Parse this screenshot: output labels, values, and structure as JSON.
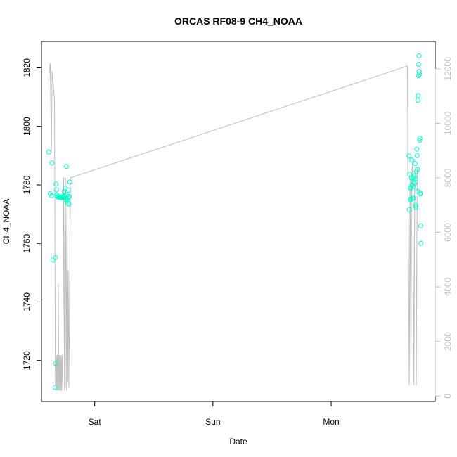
{
  "chart_data": {
    "type": "scatter",
    "title": "ORCAS RF08-9 CH4_NOAA",
    "xlabel": "Date",
    "ylabel": "CH4_NOAA",
    "x_ticks": [
      {
        "label": "Sat",
        "day": 1.0
      },
      {
        "label": "Sun",
        "day": 2.0
      },
      {
        "label": "Mon",
        "day": 3.0
      }
    ],
    "xlim_days": [
      0.55,
      3.88
    ],
    "ylim": [
      1706,
      1829
    ],
    "y_ticks": [
      1720,
      1740,
      1760,
      1780,
      1800,
      1820
    ],
    "y2lim": [
      -200,
      13000
    ],
    "y2_ticks": [
      0,
      2000,
      4000,
      6000,
      8000,
      10000,
      12000
    ],
    "colors": {
      "points": "#00FFCC",
      "line": "#BEBEBE",
      "right_axis": "#BDBDBD"
    },
    "series": [
      {
        "name": "",
        "axis": "left",
        "marker": "circle",
        "points": [
          [
            0.611,
            1791.2
          ],
          [
            0.624,
            1777.0
          ],
          [
            0.637,
            1787.5
          ],
          [
            0.637,
            1776.3
          ],
          [
            0.645,
            1754.3
          ],
          [
            0.669,
            1755.2
          ],
          [
            0.669,
            1719.0
          ],
          [
            0.666,
            1710.8
          ],
          [
            0.673,
            1780.3
          ],
          [
            0.677,
            1778.3
          ],
          [
            0.681,
            1776.5
          ],
          [
            0.686,
            1776.0
          ],
          [
            0.692,
            1776.0
          ],
          [
            0.698,
            1775.8
          ],
          [
            0.704,
            1775.8
          ],
          [
            0.71,
            1775.8
          ],
          [
            0.716,
            1775.8
          ],
          [
            0.722,
            1775.6
          ],
          [
            0.728,
            1775.8
          ],
          [
            0.734,
            1776.1
          ],
          [
            0.74,
            1777.7
          ],
          [
            0.746,
            1775.8
          ],
          [
            0.752,
            1778.9
          ],
          [
            0.758,
            1774.8
          ],
          [
            0.761,
            1786.3
          ],
          [
            0.764,
            1775.4
          ],
          [
            0.767,
            1776.5
          ],
          [
            0.77,
            1774.6
          ],
          [
            0.773,
            1773.8
          ],
          [
            0.776,
            1775.8
          ],
          [
            0.779,
            1778.2
          ],
          [
            0.782,
            1773.4
          ],
          [
            0.786,
            1776.0
          ],
          [
            0.79,
            1781.0
          ],
          [
            3.658,
            1789.9
          ],
          [
            3.661,
            1771.5
          ],
          [
            3.664,
            1783.6
          ],
          [
            3.667,
            1779.0
          ],
          [
            3.67,
            1774.8
          ],
          [
            3.673,
            1775.2
          ],
          [
            3.676,
            1778.9
          ],
          [
            3.679,
            1782.4
          ],
          [
            3.682,
            1788.5
          ],
          [
            3.685,
            1780.0
          ],
          [
            3.688,
            1775.4
          ],
          [
            3.691,
            1782.6
          ],
          [
            3.694,
            1779.4
          ],
          [
            3.697,
            1775.5
          ],
          [
            3.7,
            1781.0
          ],
          [
            3.703,
            1783.0
          ],
          [
            3.706,
            1780.5
          ],
          [
            3.709,
            1782.0
          ],
          [
            3.712,
            1787.3
          ],
          [
            3.715,
            1773.0
          ],
          [
            3.718,
            1772.4
          ],
          [
            3.721,
            1784.6
          ],
          [
            3.724,
            1792.2
          ],
          [
            3.727,
            1790.0
          ],
          [
            3.73,
            1785.3
          ],
          [
            3.733,
            1777.8
          ],
          [
            3.735,
            1808.9
          ],
          [
            3.737,
            1810.5
          ],
          [
            3.739,
            1817.3
          ],
          [
            3.741,
            1821.2
          ],
          [
            3.743,
            1824.1
          ],
          [
            3.745,
            1818.7
          ],
          [
            3.747,
            1817.8
          ],
          [
            3.749,
            1795.2
          ],
          [
            3.751,
            1795.9
          ],
          [
            3.753,
            1777.3
          ],
          [
            3.755,
            1776.9
          ],
          [
            3.757,
            1766.0
          ],
          [
            3.759,
            1760.0
          ]
        ]
      },
      {
        "name": "",
        "axis": "right",
        "marker": "line",
        "points": [
          [
            0.61,
            11600
          ],
          [
            0.624,
            12200
          ],
          [
            0.634,
            9000
          ],
          [
            0.64,
            11900
          ],
          [
            0.66,
            10900
          ],
          [
            0.668,
            500
          ],
          [
            0.672,
            200
          ],
          [
            0.676,
            1500
          ],
          [
            0.68,
            200
          ],
          [
            0.684,
            1500
          ],
          [
            0.688,
            200
          ],
          [
            0.692,
            4100
          ],
          [
            0.696,
            200
          ],
          [
            0.7,
            1500
          ],
          [
            0.704,
            200
          ],
          [
            0.708,
            1500
          ],
          [
            0.712,
            200
          ],
          [
            0.716,
            1500
          ],
          [
            0.72,
            200
          ],
          [
            0.724,
            1500
          ],
          [
            0.73,
            200
          ],
          [
            0.738,
            8000
          ],
          [
            0.745,
            200
          ],
          [
            0.752,
            8000
          ],
          [
            0.76,
            200
          ],
          [
            0.766,
            8000
          ],
          [
            0.772,
            500
          ],
          [
            0.776,
            4600
          ],
          [
            0.782,
            300
          ],
          [
            0.795,
            8000
          ],
          [
            3.645,
            12100
          ],
          [
            3.65,
            7700
          ],
          [
            3.66,
            400
          ],
          [
            3.667,
            8000
          ],
          [
            3.675,
            400
          ],
          [
            3.68,
            8000
          ],
          [
            3.69,
            8700
          ],
          [
            3.7,
            400
          ],
          [
            3.707,
            8000
          ],
          [
            3.715,
            8300
          ],
          [
            3.72,
            400
          ],
          [
            3.728,
            8300
          ],
          [
            3.733,
            8400
          ]
        ]
      }
    ]
  }
}
